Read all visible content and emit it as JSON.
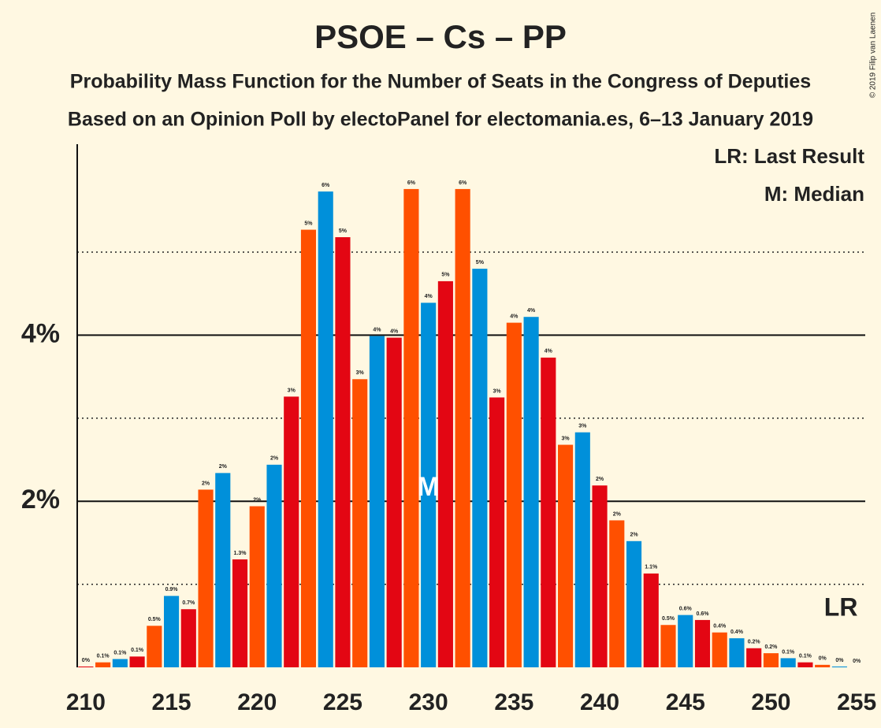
{
  "chart_data": {
    "type": "bar",
    "title": "PSOE – Cs – PP",
    "subtitle": "Probability Mass Function for the Number of Seats in the Congress of Deputies",
    "subtitle2": "Based on an Opinion Poll by electoPanel for electomania.es, 6–13 January 2019",
    "copyright": "© 2019 Filip van Laenen",
    "legend": [
      "LR: Last Result",
      "M: Median"
    ],
    "x": [
      210,
      211,
      212,
      213,
      214,
      215,
      216,
      217,
      218,
      219,
      220,
      221,
      222,
      223,
      224,
      225,
      226,
      227,
      228,
      229,
      230,
      231,
      232,
      233,
      234,
      235,
      236,
      237,
      238,
      239,
      240,
      241,
      242,
      243,
      244,
      245,
      246,
      247,
      248,
      249,
      250,
      251,
      252,
      253,
      254,
      255
    ],
    "values": [
      0.01,
      0.06,
      0.1,
      0.13,
      0.5,
      0.86,
      0.7,
      2.14,
      2.34,
      1.3,
      1.94,
      2.44,
      3.26,
      5.27,
      5.73,
      5.18,
      3.47,
      3.99,
      3.97,
      5.76,
      4.39,
      4.65,
      5.76,
      4.8,
      3.25,
      4.15,
      4.22,
      3.73,
      2.68,
      2.83,
      2.19,
      1.77,
      1.52,
      1.13,
      0.51,
      0.63,
      0.57,
      0.42,
      0.35,
      0.23,
      0.17,
      0.11,
      0.06,
      0.03,
      0.01,
      0
    ],
    "value_labels": [
      "0%",
      "0.1%",
      "0.1%",
      "0.1%",
      "0.5%",
      "0.9%",
      "0.7%",
      "2%",
      "2%",
      "1.3%",
      "2%",
      "2%",
      "3%",
      "5%",
      "6%",
      "5%",
      "3%",
      "4%",
      "4%",
      "6%",
      "4%",
      "5%",
      "6%",
      "5%",
      "3%",
      "4%",
      "4%",
      "4%",
      "3%",
      "3%",
      "2%",
      "2%",
      "2%",
      "1.1%",
      "0.5%",
      "0.6%",
      "0.6%",
      "0.4%",
      "0.4%",
      "0.2%",
      "0.2%",
      "0.1%",
      "0.1%",
      "0%",
      "0%",
      "0%"
    ],
    "colors": [
      "#e30613",
      "#ff5000",
      "#0090da"
    ],
    "xlim": [
      209.5,
      255.5
    ],
    "xticks": [
      210,
      215,
      220,
      225,
      230,
      235,
      240,
      245,
      250,
      255
    ],
    "ylim": [
      0,
      6.3
    ],
    "yticks": [
      {
        "value": 2,
        "label": "2%"
      },
      {
        "value": 4,
        "label": "4%"
      }
    ],
    "yminor": [
      1,
      3,
      5
    ],
    "median": {
      "x": 230,
      "label": "M"
    },
    "last_result": {
      "x": 255,
      "label": "LR"
    }
  }
}
